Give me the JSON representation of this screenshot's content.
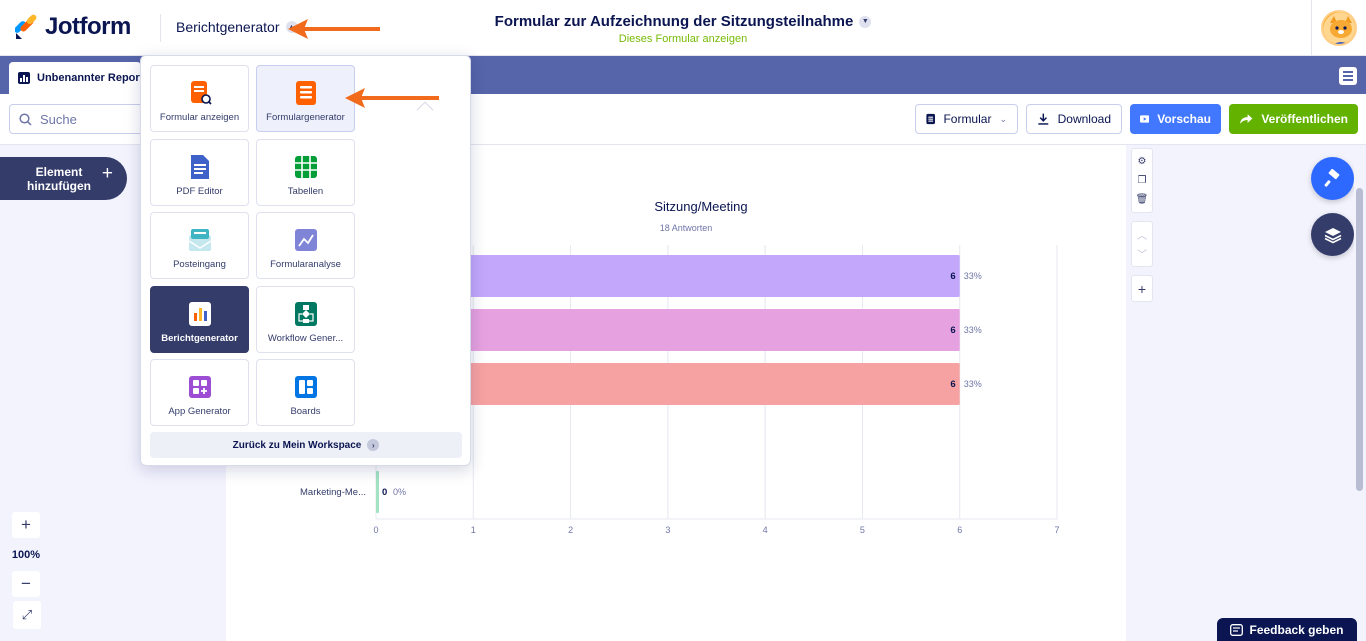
{
  "header": {
    "logo_text": "Jotform",
    "app_switcher_label": "Berichtgenerator",
    "form_title": "Formular zur Aufzeichnung der Sitzungsteilnahme",
    "form_subtitle": "Dieses Formular anzeigen"
  },
  "tabs": {
    "report_tab_label": "Unbenannter Report"
  },
  "toolbar": {
    "search_placeholder": "Suche",
    "form_label": "Formular",
    "download_label": "Download",
    "preview_label": "Vorschau",
    "publish_label": "Veröffentlichen"
  },
  "sidebar": {
    "add_element_label": "Element hinzufügen"
  },
  "zoom": {
    "level": "100%"
  },
  "app_menu": {
    "items": [
      {
        "label": "Formular anzeigen",
        "icon": "form-view-icon",
        "color": "#ff6100",
        "state": "normal"
      },
      {
        "label": "Formulargenerator",
        "icon": "form-builder-icon",
        "color": "#ff6100",
        "state": "hover"
      },
      {
        "label": "PDF Editor",
        "icon": "pdf-editor-icon",
        "color": "#3e62c8",
        "state": "normal"
      },
      {
        "label": "Tabellen",
        "icon": "tables-icon",
        "color": "#049e38",
        "state": "normal"
      },
      {
        "label": "Posteingang",
        "icon": "inbox-icon",
        "color": "#3fb5c3",
        "state": "normal"
      },
      {
        "label": "Formularanalyse",
        "icon": "analytics-icon",
        "color": "#7f84d6",
        "state": "normal"
      },
      {
        "label": "Berichtgenerator",
        "icon": "report-builder-icon",
        "color": "#ffffff",
        "state": "active"
      },
      {
        "label": "Workflow Gener...",
        "icon": "workflow-icon",
        "color": "#007862",
        "state": "normal"
      },
      {
        "label": "App Generator",
        "icon": "app-builder-icon",
        "color": "#9c4dd3",
        "state": "normal"
      },
      {
        "label": "Boards",
        "icon": "boards-icon",
        "color": "#0075e3",
        "state": "normal"
      }
    ],
    "back_label": "Zurück zu Mein Workspace"
  },
  "feedback_label": "Feedback geben",
  "chart_data": {
    "type": "bar",
    "orientation": "horizontal",
    "title": "Sitzung/Meeting",
    "subtitle": "18 Antworten",
    "categories": [
      "",
      "",
      "",
      "",
      "Marketing-Me..."
    ],
    "values": [
      6,
      6,
      6,
      0,
      0
    ],
    "percent_labels": [
      "33%",
      "33%",
      "33%",
      "",
      "0%"
    ],
    "bar_colors": [
      "#c3a7fb",
      "#e6a1e0",
      "#f7a2a2",
      "#ffffff",
      "#a3e3c4"
    ],
    "xlim": [
      0,
      7
    ],
    "xticks": [
      "0",
      "1",
      "2",
      "3",
      "4",
      "5",
      "6",
      "7"
    ],
    "grid": true
  }
}
